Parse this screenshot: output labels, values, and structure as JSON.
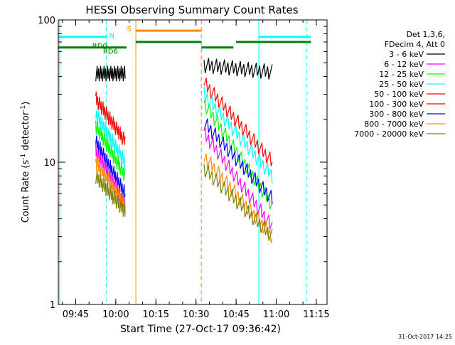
{
  "chart_data": {
    "type": "line",
    "title": "HESSI Observing Summary Count Rates",
    "xlabel": "Start Time (27-Oct-17 09:36:42)",
    "ylabel_main": "Count Rate (s",
    "ylabel_sup1": "-1",
    "ylabel_mid": " detector",
    "ylabel_sup2": "-1",
    "ylabel_end": ")",
    "y_scale": "log",
    "ylim": [
      1,
      100
    ],
    "xlim_minutes_after_0936": [
      2.5,
      103
    ],
    "x_ticks": [
      {
        "label": "09:45",
        "minute": 9
      },
      {
        "label": "10:00",
        "minute": 24
      },
      {
        "label": "10:15",
        "minute": 39
      },
      {
        "label": "10:30",
        "minute": 54
      },
      {
        "label": "10:45",
        "minute": 69
      },
      {
        "label": "11:00",
        "minute": 84
      },
      {
        "label": "11:15",
        "minute": 99
      }
    ],
    "y_ticks": [
      {
        "label": "1",
        "value": 1
      },
      {
        "label": "10",
        "value": 10
      },
      {
        "label": "100",
        "value": 100
      }
    ],
    "legend": {
      "header1": "Det 1,3,6,",
      "header2": "FDecim 4, Att 0",
      "entries": [
        {
          "label": "3 - 6 keV",
          "color": "#000000"
        },
        {
          "label": "6 - 12 keV",
          "color": "#ff00ff"
        },
        {
          "label": "12 - 25 keV",
          "color": "#00ff00"
        },
        {
          "label": "25 - 50 keV",
          "color": "#00ffff"
        },
        {
          "label": "50 - 100 keV",
          "color": "#ff0000"
        },
        {
          "label": "100 - 300 keV",
          "color": "#ff0000"
        },
        {
          "label": "300 - 800 keV",
          "color": "#0000ff"
        },
        {
          "label": "800 - 7000 keV",
          "color": "#ff8c00"
        },
        {
          "label": "7000 - 20000 keV",
          "color": "#808000"
        }
      ]
    },
    "flags": [
      {
        "label": "N",
        "color": "#00ffff"
      },
      {
        "label": "S",
        "color": "#ff8c00"
      },
      {
        "label": "RD0",
        "color": "#008000"
      },
      {
        "label": "RD6",
        "color": "#008000"
      }
    ],
    "series": [
      {
        "color": "#000000",
        "segments": [
          {
            "x0": 16.5,
            "x1": 27.5,
            "y0": 42,
            "y1": 42
          },
          {
            "x0": 57,
            "x1": 82.5,
            "y0": 48,
            "y1": 43
          }
        ]
      },
      {
        "color": "#ff0000",
        "segments": [
          {
            "x0": 16.5,
            "x1": 27.5,
            "y0": 28,
            "y1": 14
          },
          {
            "x0": 57,
            "x1": 82.5,
            "y0": 36,
            "y1": 10
          }
        ]
      },
      {
        "color": "#00ffff",
        "segments": [
          {
            "x0": 16.5,
            "x1": 27.5,
            "y0": 22,
            "y1": 10
          },
          {
            "x0": 57,
            "x1": 82.5,
            "y0": 30,
            "y1": 8
          }
        ]
      },
      {
        "color": "#00ff00",
        "segments": [
          {
            "x0": 16.5,
            "x1": 27.5,
            "y0": 18,
            "y1": 8
          },
          {
            "x0": 57,
            "x1": 82.5,
            "y0": 26,
            "y1": 5
          }
        ]
      },
      {
        "color": "#0000ff",
        "segments": [
          {
            "x0": 16.5,
            "x1": 27.5,
            "y0": 14,
            "y1": 6
          },
          {
            "x0": 57,
            "x1": 82.5,
            "y0": 19,
            "y1": 5.5
          }
        ]
      },
      {
        "color": "#ff00ff",
        "segments": [
          {
            "x0": 16.5,
            "x1": 27.5,
            "y0": 12,
            "y1": 5
          },
          {
            "x0": 57,
            "x1": 82.5,
            "y0": 16,
            "y1": 3.5
          }
        ]
      },
      {
        "color": "#ff8c00",
        "segments": [
          {
            "x0": 16.5,
            "x1": 27.5,
            "y0": 10,
            "y1": 5
          },
          {
            "x0": 57,
            "x1": 82.5,
            "y0": 11,
            "y1": 3
          }
        ]
      },
      {
        "color": "#808000",
        "segments": [
          {
            "x0": 16.5,
            "x1": 27.5,
            "y0": 8,
            "y1": 4.5
          },
          {
            "x0": 57,
            "x1": 82.5,
            "y0": 9,
            "y1": 3
          }
        ]
      }
    ],
    "events": [
      {
        "color": "#00ffff",
        "style": "solid",
        "minute": 3
      },
      {
        "color": "#00ffff",
        "style": "dashed",
        "minute": 20.5
      },
      {
        "color": "#ff8c00",
        "style": "solid",
        "minute": 31.5
      },
      {
        "color": "#ff8c00",
        "style": "dashed",
        "minute": 56
      },
      {
        "color": "#00ffff",
        "style": "solid",
        "minute": 77.5
      },
      {
        "color": "#00ffff",
        "style": "dashed",
        "minute": 95.5
      }
    ],
    "flag_bars": [
      {
        "color": "#00ffff",
        "y": 76,
        "ranges": [
          [
            2.5,
            20.5
          ],
          [
            77.5,
            97
          ]
        ]
      },
      {
        "color": "#ff8c00",
        "y": 84,
        "ranges": [
          [
            31.5,
            56
          ]
        ]
      },
      {
        "color": "#008000",
        "y": 64,
        "ranges": [
          [
            2.5,
            28
          ]
        ]
      },
      {
        "color": "#008000",
        "y": 70,
        "ranges": [
          [
            31.5,
            56
          ],
          [
            69,
            97
          ]
        ]
      },
      {
        "color": "#008000",
        "y": 64,
        "ranges": [
          [
            56,
            68
          ]
        ]
      }
    ],
    "timestamp": "31-Oct-2017 14:25"
  }
}
